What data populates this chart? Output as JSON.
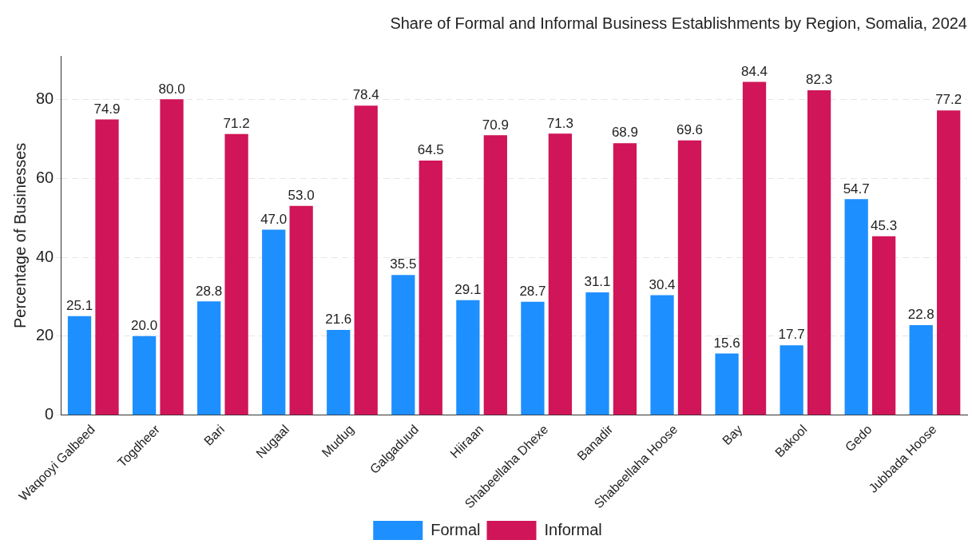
{
  "chart_data": {
    "type": "bar",
    "title": "Share of Formal and Informal Business Establishments by Region, Somalia, 2024",
    "ylabel": "Percentage of Businesses",
    "categories": [
      "Waqooyi Galbeed",
      "Togdheer",
      "Bari",
      "Nugaal",
      "Mudug",
      "Galgaduud",
      "Hiiraan",
      "Shabeellaha Dhexe",
      "Banadir",
      "Shabeellaha Hoose",
      "Bay",
      "Bakool",
      "Gedo",
      "Jubbada Hoose"
    ],
    "series": [
      {
        "name": "Formal",
        "color": "#1e8fff",
        "values": [
          25.1,
          20,
          28.8,
          47,
          21.6,
          35.5,
          29.1,
          28.7,
          31.1,
          30.4,
          15.6,
          17.7,
          54.7,
          22.8
        ],
        "value_labels": [
          "25.1",
          "20.0",
          "28.8",
          "47.0",
          "21.6",
          "35.5",
          "29.1",
          "28.7",
          "31.1",
          "30.4",
          "15.6",
          "17.7",
          "54.7",
          "22.8"
        ]
      },
      {
        "name": "Informal",
        "color": "#d01558",
        "values": [
          74.9,
          80,
          71.2,
          53,
          78.4,
          64.5,
          70.9,
          71.3,
          68.9,
          69.6,
          84.4,
          82.3,
          45.3,
          77.2
        ],
        "value_labels": [
          "74.9",
          "80.0",
          "71.2",
          "53.0",
          "78.4",
          "64.5",
          "70.9",
          "71.3",
          "68.9",
          "69.6",
          "84.4",
          "82.3",
          "45.3",
          "77.2"
        ]
      }
    ],
    "ylim": [
      0,
      91
    ],
    "yticks": [
      0,
      20,
      40,
      60,
      80
    ],
    "grid": "y",
    "legend": "bottom"
  }
}
